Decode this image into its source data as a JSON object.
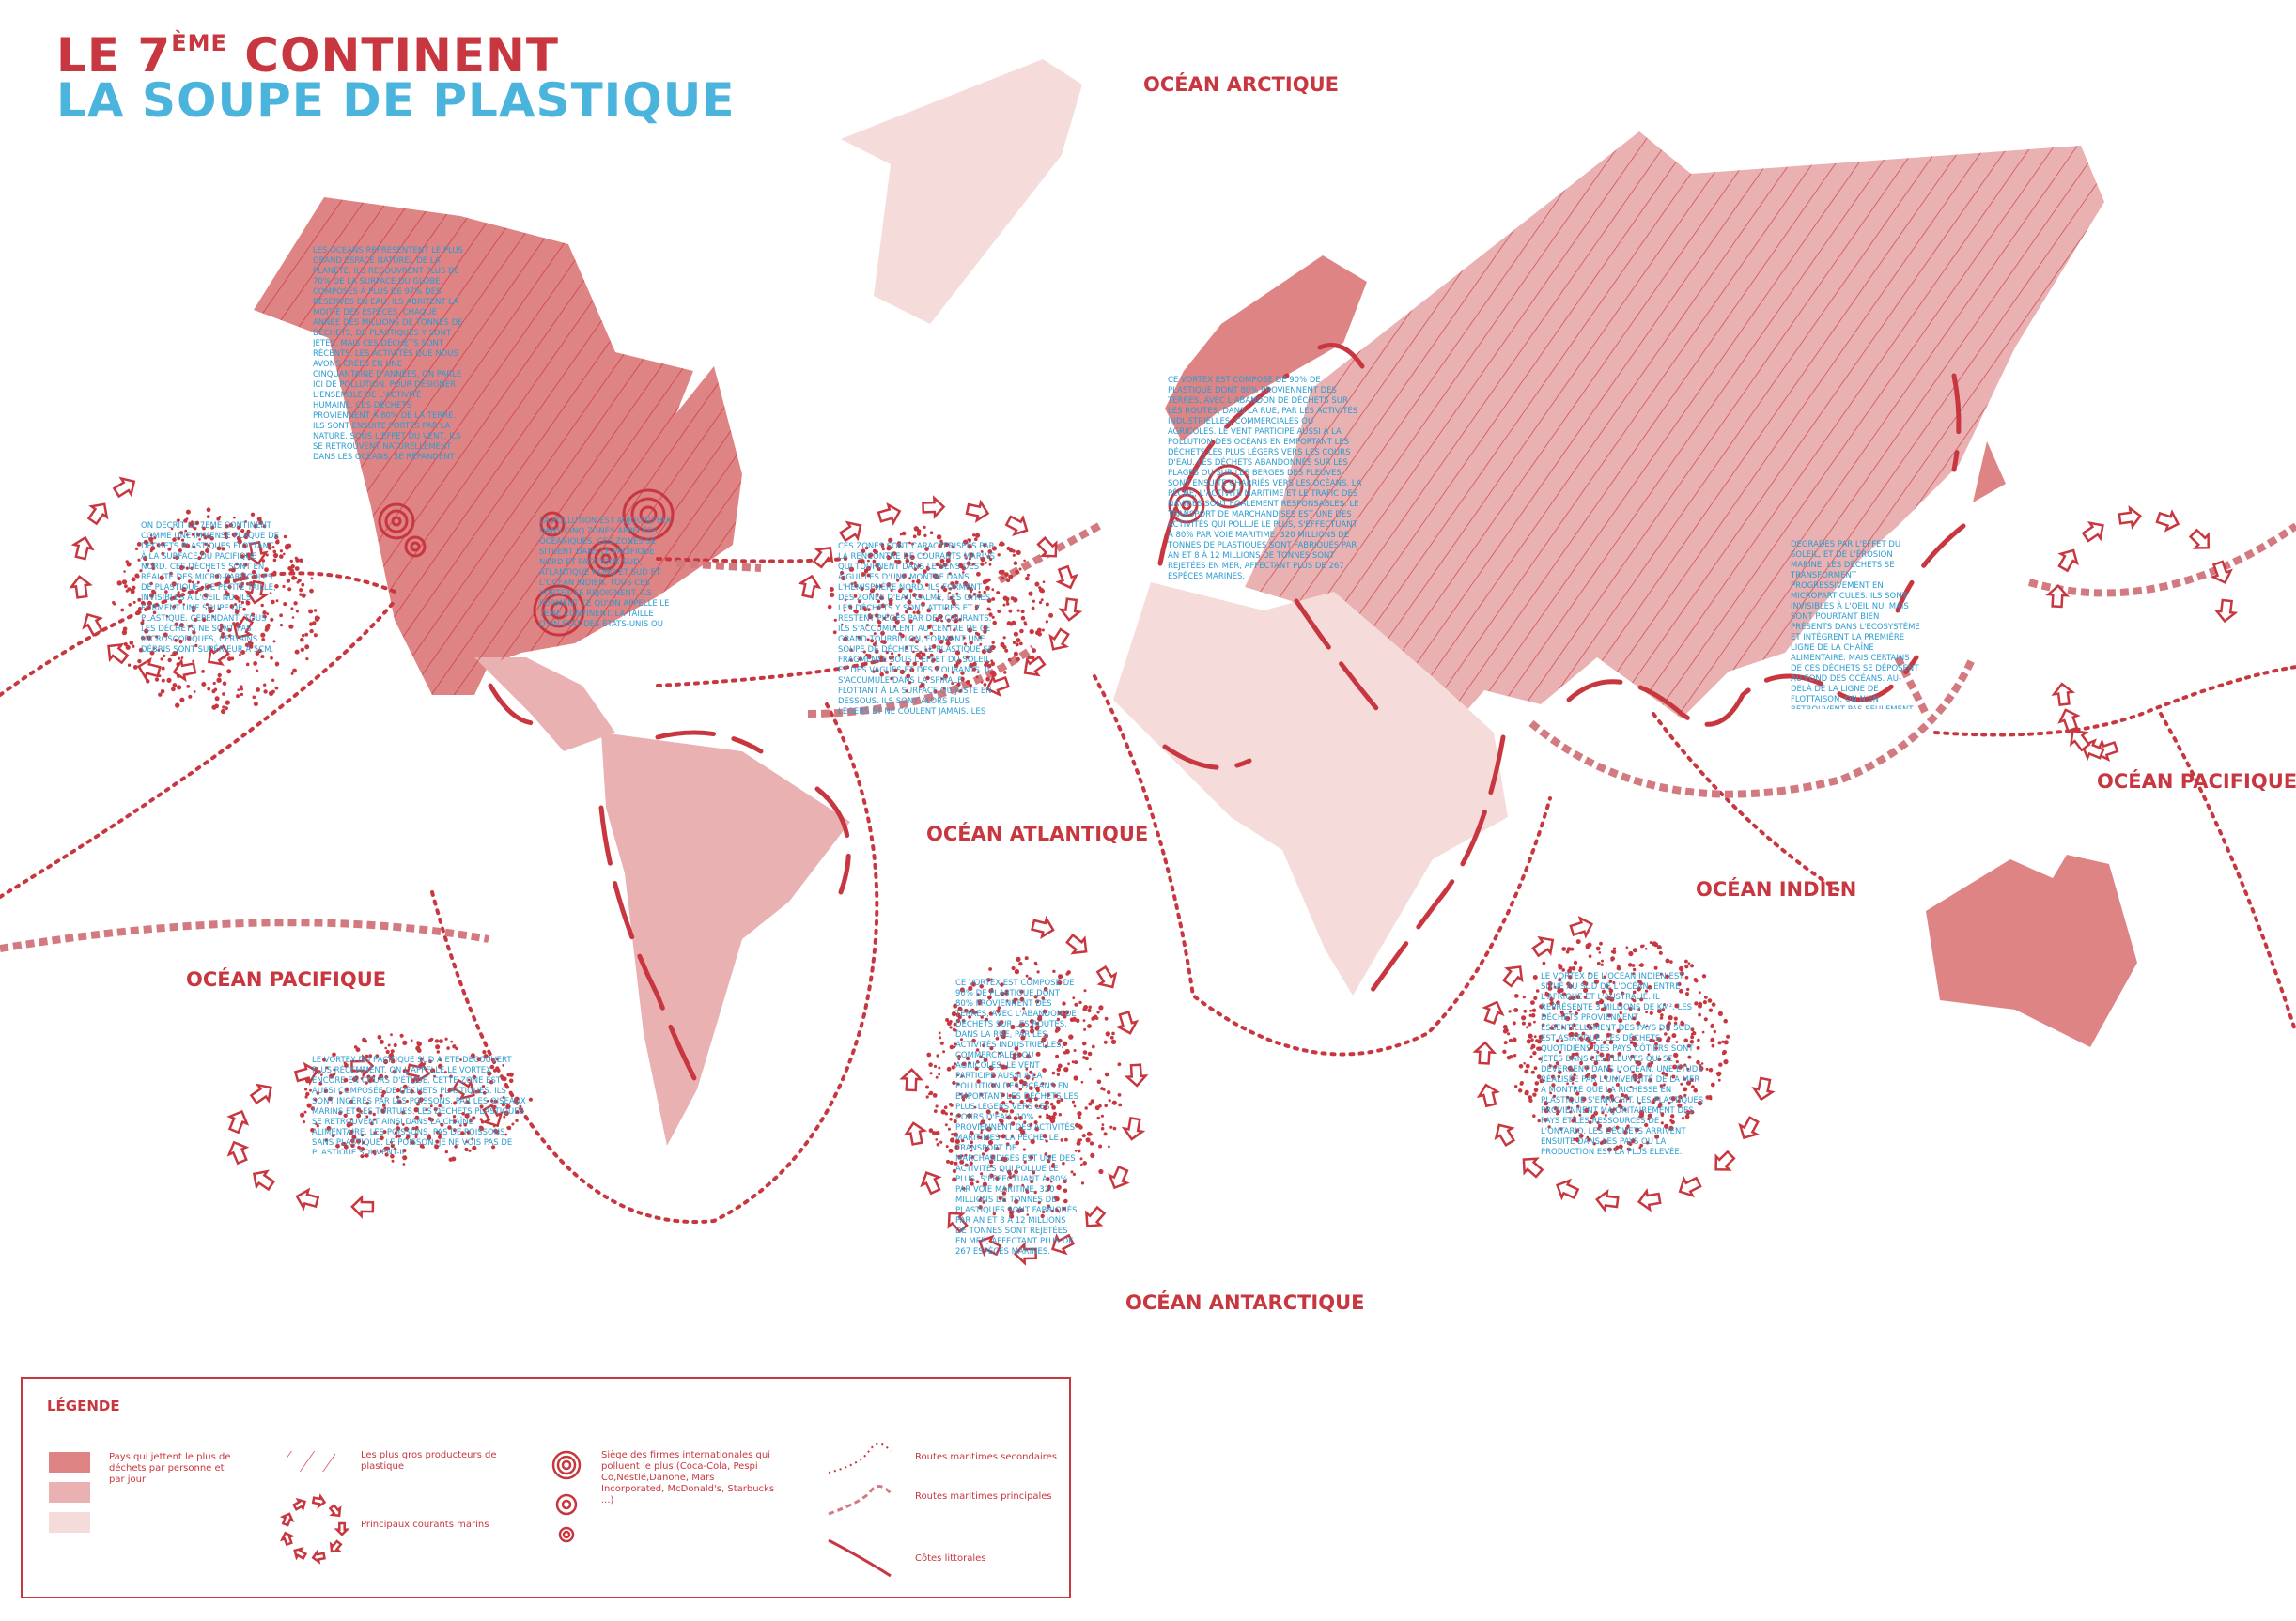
{
  "title": {
    "line1_prefix": "LE 7",
    "line1_sup": "ÈME",
    "line1_suffix": " CONTINENT",
    "line2": "LA SOUPE DE PLASTIQUE"
  },
  "oceans": {
    "arctic": "OCÉAN ARCTIQUE",
    "atlantic": "OCÉAN ATLANTIQUE",
    "indian": "OCÉAN INDIEN",
    "pacific_west": "OCÉAN PACIFIQUE",
    "pacific_east": "OCÉAN PACIFIQUE",
    "antarctic": "OCÉAN ANTARCTIQUE"
  },
  "colors": {
    "dark": "#df8485",
    "medium": "#e9b1b1",
    "light": "#f5dcdb",
    "red": "#c8373f",
    "blue": "#2b9cd2"
  },
  "blurbs": {
    "na": "Les océans représentent le plus grand espace naturel de la planète. Ils recouvrent plus de 70% de la surface du globe. Composés à plus de 97% des réserves en eau, ils abritent la moitié des espèces. Chaque année des millions de tonnes de déchets, de plastiques y sont jetés. Mais ces déchets sont récents. Les activités que nous avons crées en une cinquantaine d'années, on parle ici de pollution. Pour désigner l'ensemble de l'activité humaine. Ces déchets proviennent à 80% de la terre. Ils sont ensuite portés par la nature. Sous l'effet du vent, ils se retrouvent naturellement dans les océans. Se répandent dans les cours d'eau. Ils sont ensuite charriés vers l'océan du monde par les courants marins.",
    "na2": "La pollution est aujourd'hui dans cinq zones appelées océaniques. Ces zones se situent dans le Pacifique Nord et Pacifique Sud, Atlantique Nord et Sud et l'océan Indien. Tous ces vortex se rejoignent. Ils forment ce qu'on appelle le 7ème continent. La taille d'un État des États-Unis ou six fois la France.",
    "npacific": "On décrit le 7ème continent comme une immense plaque de déchets plastiques flottant à la surface du Pacifique Nord. Ces déchets sont en réalité des micro-particules de plastique, de petite taille, invisibles à l'oeil nu. Ils forment une soupe de plastique. Cependant, tous les déchets ne sont pas microscopiques, certains débris sont supérieur à 5cm.",
    "natlantic": "Ces zones sont caractérisées par la rencontre de courants marins qui tournent dans le sens des aiguilles d'une montre dans l'hémisphère Nord. Ils forment des zones d'eau calme, les gyres. Les déchets y sont attirés et y restent piégés par des courants. Ils s'accumulent au centre de ce grand tourbillon, formant une soupe de déchets. Le plastique se fragmente sous l'effet du soleil et des vagues et des courants. Il s'accumule dans la spirale. Flottant à la surface ou juste en dessous. Ils sont alors plus légers et ne coulent jamais. Les déchets ont donc tendance à se concentrer. Il faut cependant condamner tous les débris dans un gyre. Il faut des années pour que les déchets atteignent le centre du vortex.",
    "europe": "Ce vortex est composé de 90% de plastique dont 80% proviennent des terres, avec l'abandon de déchets sur les routes, dans la rue, par les activités industrielles, commerciales ou agricoles. Le vent participe aussi à la pollution des océans en emportant les déchets les plus légers vers les cours d'eau. Les déchets abandonnés sur les plages ou sur les berges des fleuves sont ensuite charriés vers les océans. La pêche, l'activité maritime et le trafic des navires sont également responsables. Le transport de marchandises est une des activités qui pollue le plus, s'effectuant à 80% par voie maritime. 320 millions de tonnes de plastiques sont fabriqués par an et 8 à 12 millions de tonnes sont rejetées en mer, affectant plus de 267 espèces marines.",
    "asia": "Dégradés par l'effet du soleil, et de l'érosion marine, les déchets se transforment progressivement en microparticules. Ils sont invisibles à l'oeil nu, mais sont pourtant bien présents dans l'écosystème et intègrent la première ligne de la chaîne alimentaire. Mais certains de ces déchets se déposent au fond des océans. Au-delà de la ligne de flottaison, on n'en retrouvent pas seulement des éléments de plastiques ont été retrouvés dans les fosses des Mariannes, l'endroit le plus profond de l'océan.",
    "spacific": "Le vortex du Pacifique Sud a été découvert plus récemment. On l'appelle le vortex encore en cours d'étude. Cette zone est aussi composée de déchets plastiques. Ils sont ingérés par les poissons. Par les oiseaux marins et les tortues. Les déchets plastiques se retrouvent ainsi dans la chaîne alimentaire. Les poissons, pas de poissons sans plastique. Le poisson, je ne vois pas de plastique souvent-il.",
    "satlantic": "Ce vortex est composé de 90% de plastique dont 80% proviennent des terres, avec l'abandon de déchets sur les routes, dans la rue, par les activités industrielles, commerciales ou agricoles. Le vent participe aussi à la pollution des océans en emportant les déchets les plus légers vers les cours d'eau. 10% proviennent des activités maritimes. La pêche, le transport de marchandises est une des activités qui pollue le plus, s'effectuant à 80% par voie maritime. 320 millions de tonnes de plastiques sont fabriqués par an et 8 à 12 millions de tonnes sont rejetées en mer, affectant plus de 267 espèces marines.",
    "indian": "Le vortex de l'océan Indien est situé au sud de l'océan, entre l'Afrique et l'Australie. Il représente 3 millions de km². Les déchets proviennent essentiellement des pays du sud-est asiatique. Les déchets quotidiens des pays côtiers sont jetés dans les fleuves qui se déversent dans l'océan. Une étude réalisée par l'université de la mer a montré que la richesse en plastique s'enrichit. Les plastiques proviennent majoritairement des pays et les ressources de l'Ontario. Les déchets arrivent ensuite dans les pays ou la production est la plus élevée."
  },
  "legend": {
    "title": "LÉGENDE",
    "countries": "Pays qui jettent le plus de déchets par personne et par jour",
    "producers": "Les plus gros producteurs de plastique",
    "currents": "Principaux courants marins",
    "hq": "Siège des firmes internationales qui polluent le plus (Coca-Cola, Pespi Co,Nestlé,Danone, Mars Incorporated, McDonald's, Starbucks ...)",
    "secondary": "Routes maritimes secondaires",
    "primary": "Routes maritimes principales",
    "coasts": "Côtes littorales"
  }
}
